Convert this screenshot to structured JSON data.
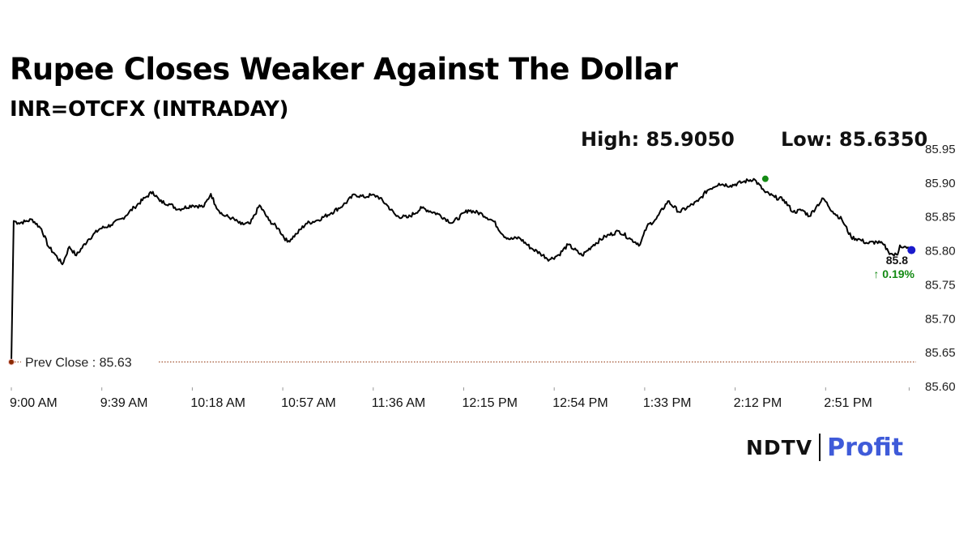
{
  "header": {
    "title": "Rupee Closes Weaker Against The Dollar",
    "subtitle": "INR=OTCFX (INTRADAY)",
    "high_text": "High: 85.9050",
    "low_text": "Low: 85.6350"
  },
  "logo": {
    "brand": "NDTV",
    "product": "Profit"
  },
  "colors": {
    "line": "#000000",
    "high_marker": "#138a13",
    "last_marker": "#1a1acc",
    "prev_close": "#8b2a00",
    "change_positive": "#138a13",
    "brand_profit": "#3f5bd9"
  },
  "chart_data": {
    "type": "line",
    "title": "Rupee Closes Weaker Against The Dollar",
    "subtitle": "INR=OTCFX (INTRADAY)",
    "x_ticks": [
      "9:00 AM",
      "9:39 AM",
      "10:18 AM",
      "10:57 AM",
      "11:36 AM",
      "12:15 PM",
      "12:54 PM",
      "1:33 PM",
      "2:12 PM",
      "2:51 PM"
    ],
    "x_tick_minutes": [
      0,
      39,
      78,
      117,
      156,
      195,
      234,
      273,
      312,
      351
    ],
    "x_range_minutes": [
      0,
      390
    ],
    "y_ticks": [
      "85.95",
      "85.90",
      "85.85",
      "85.80",
      "85.75",
      "85.70",
      "85.65",
      "85.60"
    ],
    "ylim": [
      85.6,
      85.95
    ],
    "y_axis_side": "right",
    "grid": false,
    "series": [
      {
        "x_minutes": [
          0,
          1,
          3,
          6,
          9,
          13,
          16,
          19,
          22,
          25,
          28,
          33,
          38,
          43,
          48,
          53,
          58,
          61,
          64,
          68,
          72,
          78,
          83,
          86,
          88,
          91,
          95,
          99,
          103,
          107,
          111,
          115,
          119,
          123,
          127,
          132,
          138,
          143,
          148,
          152,
          155,
          158,
          162,
          166,
          171,
          177,
          184,
          190,
          197,
          203,
          208,
          212,
          215,
          219,
          224,
          228,
          232,
          236,
          240,
          246,
          251,
          256,
          262,
          267,
          271,
          274,
          278,
          283,
          288,
          292,
          296,
          300,
          305,
          310,
          315,
          320,
          325,
          329,
          333,
          337,
          341,
          344,
          347,
          350,
          354,
          358,
          362,
          366,
          369,
          373,
          376,
          378,
          380,
          382,
          383,
          386,
          388
        ],
        "values": [
          85.635,
          85.843,
          85.84,
          85.842,
          85.845,
          85.831,
          85.805,
          85.793,
          85.779,
          85.805,
          85.792,
          85.815,
          85.831,
          85.837,
          85.847,
          85.863,
          85.878,
          85.886,
          85.872,
          85.868,
          85.86,
          85.866,
          85.864,
          85.883,
          85.866,
          85.852,
          85.847,
          85.838,
          85.839,
          85.866,
          85.844,
          85.832,
          85.812,
          85.824,
          85.839,
          85.844,
          85.855,
          85.866,
          85.882,
          85.878,
          85.881,
          85.879,
          85.866,
          85.85,
          85.848,
          85.862,
          85.853,
          85.84,
          85.859,
          85.853,
          85.842,
          85.822,
          85.816,
          85.818,
          85.803,
          85.795,
          85.786,
          85.793,
          85.808,
          85.792,
          85.808,
          85.82,
          85.828,
          85.816,
          85.808,
          85.835,
          85.846,
          85.872,
          85.856,
          85.864,
          85.872,
          85.888,
          85.898,
          85.895,
          85.9,
          85.905,
          85.885,
          85.878,
          85.874,
          85.856,
          85.859,
          85.85,
          85.864,
          85.876,
          85.857,
          85.845,
          85.819,
          85.815,
          85.81,
          85.812,
          85.808,
          85.798,
          85.793,
          85.793,
          85.807,
          85.803,
          85.8
        ]
      }
    ],
    "prev_close": {
      "label": "Prev Close : 85.63",
      "value": 85.635
    },
    "high": {
      "x_minutes": 325,
      "value": 85.905
    },
    "last": {
      "x_minutes": 388,
      "value": 85.8,
      "label": "85.8",
      "change_label": "↑ 0.19%"
    }
  }
}
